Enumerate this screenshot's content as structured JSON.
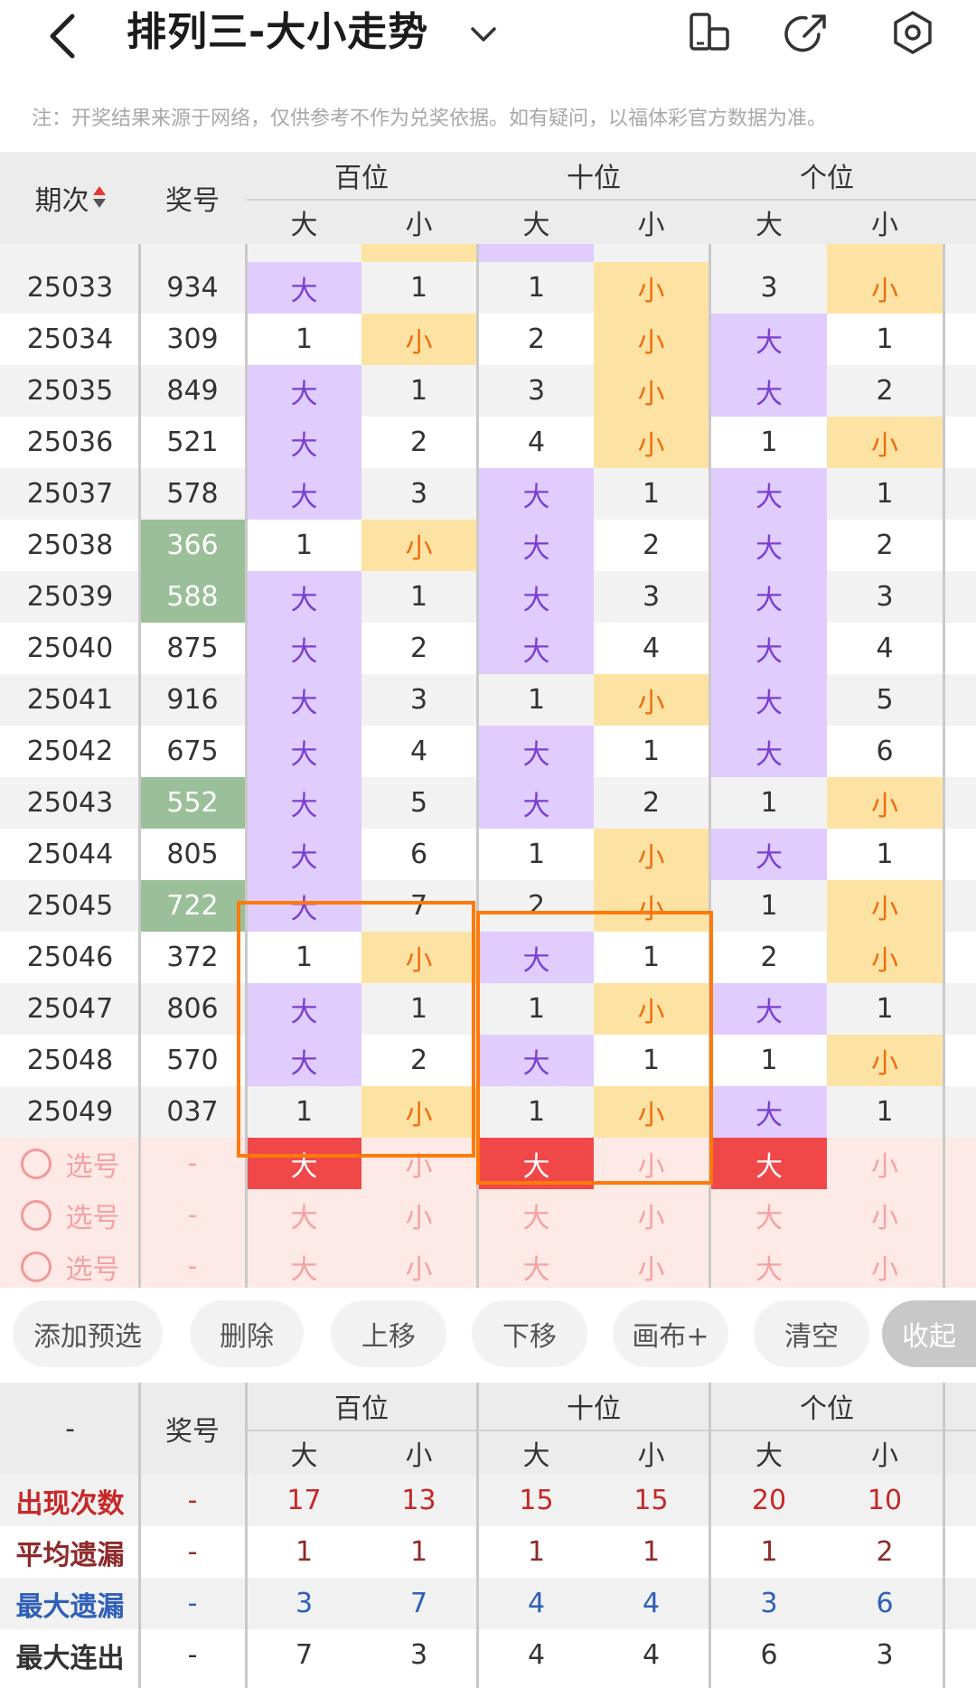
{
  "header": {
    "title": "排列三-大小走势",
    "icons": [
      "back-icon",
      "chevron-down-icon",
      "screen-rotate-icon",
      "share-icon",
      "settings-icon"
    ]
  },
  "notice": "注：开奖结果来源于网络，仅供参考不作为兑奖依据。如有疑问，以福体彩官方数据为准。",
  "table_header": {
    "period": "期次",
    "number": "奖号",
    "groups": [
      "百位",
      "十位",
      "个位"
    ],
    "big": "大",
    "small": "小"
  },
  "rows": [
    {
      "period": "25033",
      "number": "934",
      "hl": false,
      "cells": [
        {
          "t": "大",
          "k": "big"
        },
        {
          "t": "1",
          "k": ""
        },
        {
          "t": "1",
          "k": ""
        },
        {
          "t": "小",
          "k": "small"
        },
        {
          "t": "3",
          "k": ""
        },
        {
          "t": "小",
          "k": "small"
        }
      ]
    },
    {
      "period": "25034",
      "number": "309",
      "hl": false,
      "cells": [
        {
          "t": "1",
          "k": ""
        },
        {
          "t": "小",
          "k": "small"
        },
        {
          "t": "2",
          "k": ""
        },
        {
          "t": "小",
          "k": "small"
        },
        {
          "t": "大",
          "k": "big"
        },
        {
          "t": "1",
          "k": ""
        }
      ]
    },
    {
      "period": "25035",
      "number": "849",
      "hl": false,
      "cells": [
        {
          "t": "大",
          "k": "big"
        },
        {
          "t": "1",
          "k": ""
        },
        {
          "t": "3",
          "k": ""
        },
        {
          "t": "小",
          "k": "small"
        },
        {
          "t": "大",
          "k": "big"
        },
        {
          "t": "2",
          "k": ""
        }
      ]
    },
    {
      "period": "25036",
      "number": "521",
      "hl": false,
      "cells": [
        {
          "t": "大",
          "k": "big"
        },
        {
          "t": "2",
          "k": ""
        },
        {
          "t": "4",
          "k": ""
        },
        {
          "t": "小",
          "k": "small"
        },
        {
          "t": "1",
          "k": ""
        },
        {
          "t": "小",
          "k": "small"
        }
      ]
    },
    {
      "period": "25037",
      "number": "578",
      "hl": false,
      "cells": [
        {
          "t": "大",
          "k": "big"
        },
        {
          "t": "3",
          "k": ""
        },
        {
          "t": "大",
          "k": "big"
        },
        {
          "t": "1",
          "k": ""
        },
        {
          "t": "大",
          "k": "big"
        },
        {
          "t": "1",
          "k": ""
        }
      ]
    },
    {
      "period": "25038",
      "number": "366",
      "hl": true,
      "cells": [
        {
          "t": "1",
          "k": ""
        },
        {
          "t": "小",
          "k": "small"
        },
        {
          "t": "大",
          "k": "big"
        },
        {
          "t": "2",
          "k": ""
        },
        {
          "t": "大",
          "k": "big"
        },
        {
          "t": "2",
          "k": ""
        }
      ]
    },
    {
      "period": "25039",
      "number": "588",
      "hl": true,
      "cells": [
        {
          "t": "大",
          "k": "big"
        },
        {
          "t": "1",
          "k": ""
        },
        {
          "t": "大",
          "k": "big"
        },
        {
          "t": "3",
          "k": ""
        },
        {
          "t": "大",
          "k": "big"
        },
        {
          "t": "3",
          "k": ""
        }
      ]
    },
    {
      "period": "25040",
      "number": "875",
      "hl": false,
      "cells": [
        {
          "t": "大",
          "k": "big"
        },
        {
          "t": "2",
          "k": ""
        },
        {
          "t": "大",
          "k": "big"
        },
        {
          "t": "4",
          "k": ""
        },
        {
          "t": "大",
          "k": "big"
        },
        {
          "t": "4",
          "k": ""
        }
      ]
    },
    {
      "period": "25041",
      "number": "916",
      "hl": false,
      "cells": [
        {
          "t": "大",
          "k": "big"
        },
        {
          "t": "3",
          "k": ""
        },
        {
          "t": "1",
          "k": ""
        },
        {
          "t": "小",
          "k": "small"
        },
        {
          "t": "大",
          "k": "big"
        },
        {
          "t": "5",
          "k": ""
        }
      ]
    },
    {
      "period": "25042",
      "number": "675",
      "hl": false,
      "cells": [
        {
          "t": "大",
          "k": "big"
        },
        {
          "t": "4",
          "k": ""
        },
        {
          "t": "大",
          "k": "big"
        },
        {
          "t": "1",
          "k": ""
        },
        {
          "t": "大",
          "k": "big"
        },
        {
          "t": "6",
          "k": ""
        }
      ]
    },
    {
      "period": "25043",
      "number": "552",
      "hl": true,
      "cells": [
        {
          "t": "大",
          "k": "big"
        },
        {
          "t": "5",
          "k": ""
        },
        {
          "t": "大",
          "k": "big"
        },
        {
          "t": "2",
          "k": ""
        },
        {
          "t": "1",
          "k": ""
        },
        {
          "t": "小",
          "k": "small"
        }
      ]
    },
    {
      "period": "25044",
      "number": "805",
      "hl": false,
      "cells": [
        {
          "t": "大",
          "k": "big"
        },
        {
          "t": "6",
          "k": ""
        },
        {
          "t": "1",
          "k": ""
        },
        {
          "t": "小",
          "k": "small"
        },
        {
          "t": "大",
          "k": "big"
        },
        {
          "t": "1",
          "k": ""
        }
      ]
    },
    {
      "period": "25045",
      "number": "722",
      "hl": true,
      "cells": [
        {
          "t": "大",
          "k": "big"
        },
        {
          "t": "7",
          "k": ""
        },
        {
          "t": "2",
          "k": ""
        },
        {
          "t": "小",
          "k": "small"
        },
        {
          "t": "1",
          "k": ""
        },
        {
          "t": "小",
          "k": "small"
        }
      ]
    },
    {
      "period": "25046",
      "number": "372",
      "hl": false,
      "cells": [
        {
          "t": "1",
          "k": ""
        },
        {
          "t": "小",
          "k": "small"
        },
        {
          "t": "大",
          "k": "big"
        },
        {
          "t": "1",
          "k": ""
        },
        {
          "t": "2",
          "k": ""
        },
        {
          "t": "小",
          "k": "small"
        }
      ]
    },
    {
      "period": "25047",
      "number": "806",
      "hl": false,
      "cells": [
        {
          "t": "大",
          "k": "big"
        },
        {
          "t": "1",
          "k": ""
        },
        {
          "t": "1",
          "k": ""
        },
        {
          "t": "小",
          "k": "small"
        },
        {
          "t": "大",
          "k": "big"
        },
        {
          "t": "1",
          "k": ""
        }
      ]
    },
    {
      "period": "25048",
      "number": "570",
      "hl": false,
      "cells": [
        {
          "t": "大",
          "k": "big"
        },
        {
          "t": "2",
          "k": ""
        },
        {
          "t": "大",
          "k": "big"
        },
        {
          "t": "1",
          "k": ""
        },
        {
          "t": "1",
          "k": ""
        },
        {
          "t": "小",
          "k": "small"
        }
      ]
    },
    {
      "period": "25049",
      "number": "037",
      "hl": false,
      "cells": [
        {
          "t": "1",
          "k": ""
        },
        {
          "t": "小",
          "k": "small"
        },
        {
          "t": "1",
          "k": ""
        },
        {
          "t": "小",
          "k": "small"
        },
        {
          "t": "大",
          "k": "big"
        },
        {
          "t": "1",
          "k": ""
        }
      ]
    }
  ],
  "select_rows": [
    {
      "label": "选号",
      "number": "-",
      "picks": [
        true,
        false,
        true,
        false,
        true,
        false
      ]
    },
    {
      "label": "选号",
      "number": "-",
      "picks": [
        false,
        false,
        false,
        false,
        false,
        false
      ]
    },
    {
      "label": "选号",
      "number": "-",
      "picks": [
        false,
        false,
        false,
        false,
        false,
        false
      ]
    }
  ],
  "actions": [
    "添加预选",
    "删除",
    "上移",
    "下移",
    "画布+",
    "清空",
    "收起"
  ],
  "stats_header": {
    "corner": "-",
    "number": "奖号",
    "groups": [
      "百位",
      "十位",
      "个位"
    ],
    "big": "大",
    "small": "小"
  },
  "stats": [
    {
      "label": "出现次数",
      "color": "#c62828",
      "dash": "-",
      "values": [
        "17",
        "13",
        "15",
        "15",
        "20",
        "10"
      ]
    },
    {
      "label": "平均遗漏",
      "color": "#8e2a2a",
      "dash": "-",
      "values": [
        "1",
        "1",
        "1",
        "1",
        "1",
        "2"
      ]
    },
    {
      "label": "最大遗漏",
      "color": "#2f5fb8",
      "dash": "-",
      "values": [
        "3",
        "7",
        "4",
        "4",
        "3",
        "6"
      ]
    },
    {
      "label": "最大连出",
      "color": "#333333",
      "dash": "-",
      "values": [
        "7",
        "3",
        "4",
        "4",
        "6",
        "3"
      ]
    }
  ]
}
